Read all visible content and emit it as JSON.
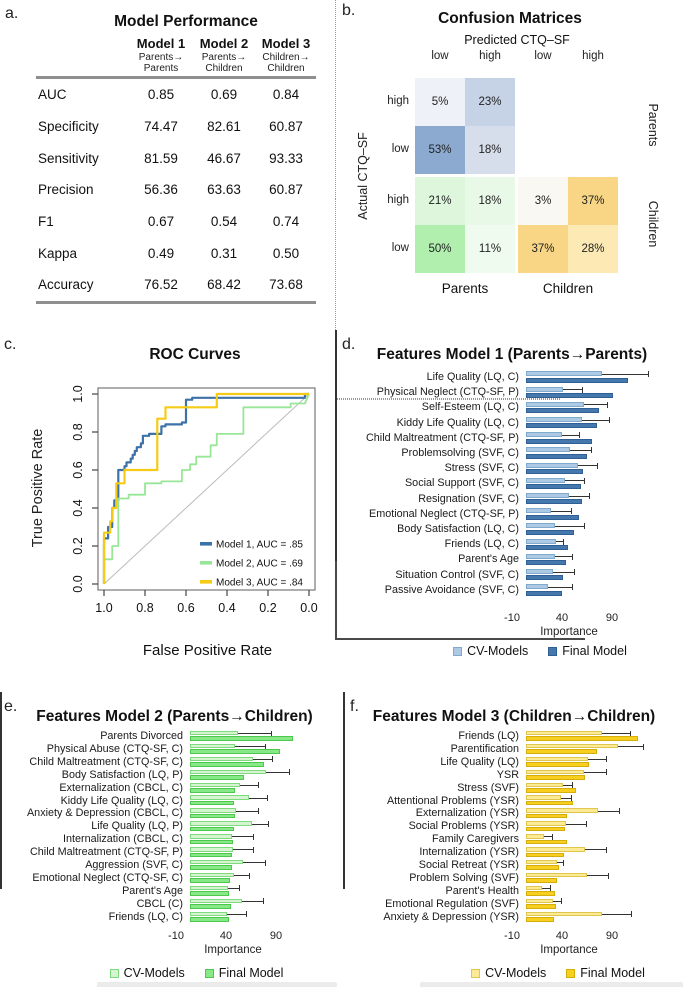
{
  "chart_data": [
    {
      "id": "a",
      "type": "table",
      "letter": "a.",
      "title": "Model Performance",
      "columns": [
        {
          "name": "Model 1",
          "sub": [
            "Parents→",
            "Parents"
          ]
        },
        {
          "name": "Model 2",
          "sub": [
            "Parents→",
            "Children"
          ]
        },
        {
          "name": "Model 3",
          "sub": [
            "Children→",
            "Children"
          ]
        }
      ],
      "rows": [
        {
          "metric": "AUC",
          "values": [
            "0.85",
            "0.69",
            "0.84"
          ]
        },
        {
          "metric": "Specificity",
          "values": [
            "74.47",
            "82.61",
            "60.87"
          ]
        },
        {
          "metric": "Sensitivity",
          "values": [
            "81.59",
            "46.67",
            "93.33"
          ]
        },
        {
          "metric": "Precision",
          "values": [
            "56.36",
            "63.63",
            "60.87"
          ]
        },
        {
          "metric": "F1",
          "values": [
            "0.67",
            "0.54",
            "0.74"
          ]
        },
        {
          "metric": "Kappa",
          "values": [
            "0.49",
            "0.31",
            "0.50"
          ]
        },
        {
          "metric": "Accuracy",
          "values": [
            "76.52",
            "68.42",
            "73.68"
          ]
        }
      ]
    },
    {
      "id": "b",
      "type": "heatmap",
      "letter": "b.",
      "title": "Confusion Matrices",
      "top_axis": "Predicted CTQ–SF",
      "left_axis": "Actual CTQ–SF",
      "col_headers": [
        "low",
        "high",
        "low",
        "high"
      ],
      "row_headers": [
        "high",
        "low",
        "high",
        "low"
      ],
      "right_labels": [
        "Parents",
        "Children"
      ],
      "bottom_labels": [
        "Parents",
        "Children"
      ],
      "cells": [
        [
          "5%",
          "23%",
          "",
          ""
        ],
        [
          "53%",
          "18%",
          "",
          ""
        ],
        [
          "21%",
          "18%",
          "3%",
          "37%"
        ],
        [
          "50%",
          "11%",
          "37%",
          "28%"
        ]
      ],
      "cell_colors": [
        [
          "#eef2f8",
          "#c6d3e6",
          "",
          ""
        ],
        [
          "#8ca9d0",
          "#d6deeb",
          "",
          ""
        ],
        [
          "#def6dc",
          "#e9f9e8",
          "#faf8f3",
          "#f8d685"
        ],
        [
          "#b0efae",
          "#f0fbf0",
          "#f8d685",
          "#fce9b4"
        ]
      ]
    },
    {
      "id": "c",
      "type": "line",
      "letter": "c.",
      "title": "ROC Curves",
      "xlabel": "False Positive Rate",
      "ylabel": "True Positive Rate",
      "x_ticks": [
        "1.0",
        "0.8",
        "0.6",
        "0.4",
        "0.2",
        "0.0"
      ],
      "y_ticks": [
        "0.0",
        "0.2",
        "0.4",
        "0.6",
        "0.8",
        "1.0"
      ],
      "x_axis_reversed": true,
      "diagonal_reference_line": true,
      "legend": [
        {
          "label": "Model 1, AUC = .85",
          "color": "#3c72a7"
        },
        {
          "label": "Model 2, AUC = .69",
          "color": "#98e698"
        },
        {
          "label": "Model 3, AUC = .84",
          "color": "#f6cb15"
        }
      ],
      "curves": [
        {
          "name": "Model 1",
          "auc": 0.85,
          "color": "#3c72a7",
          "width": 2.2,
          "points": [
            [
              1,
              0
            ],
            [
              1,
              0.24
            ],
            [
              0.98,
              0.24
            ],
            [
              0.98,
              0.3
            ],
            [
              0.96,
              0.3
            ],
            [
              0.96,
              0.4
            ],
            [
              0.95,
              0.4
            ],
            [
              0.95,
              0.44
            ],
            [
              0.93,
              0.44
            ],
            [
              0.93,
              0.6
            ],
            [
              0.9,
              0.6
            ],
            [
              0.9,
              0.62
            ],
            [
              0.89,
              0.62
            ],
            [
              0.89,
              0.64
            ],
            [
              0.87,
              0.64
            ],
            [
              0.87,
              0.66
            ],
            [
              0.86,
              0.66
            ],
            [
              0.86,
              0.68
            ],
            [
              0.85,
              0.68
            ],
            [
              0.85,
              0.7
            ],
            [
              0.84,
              0.7
            ],
            [
              0.84,
              0.72
            ],
            [
              0.82,
              0.72
            ],
            [
              0.82,
              0.74
            ],
            [
              0.81,
              0.74
            ],
            [
              0.81,
              0.78
            ],
            [
              0.78,
              0.78
            ],
            [
              0.78,
              0.79
            ],
            [
              0.72,
              0.79
            ],
            [
              0.72,
              0.83
            ],
            [
              0.7,
              0.83
            ],
            [
              0.7,
              0.84
            ],
            [
              0.62,
              0.84
            ],
            [
              0.62,
              0.85
            ],
            [
              0.6,
              0.85
            ],
            [
              0.6,
              0.97
            ],
            [
              0.57,
              0.97
            ],
            [
              0.57,
              0.98
            ],
            [
              0.05,
              0.98
            ],
            [
              0.02,
              0.98
            ],
            [
              0.02,
              1
            ],
            [
              0,
              1
            ]
          ]
        },
        {
          "name": "Model 2",
          "auc": 0.69,
          "color": "#98e698",
          "width": 1.8,
          "points": [
            [
              1,
              0
            ],
            [
              1,
              0.13
            ],
            [
              0.96,
              0.13
            ],
            [
              0.96,
              0.2
            ],
            [
              0.93,
              0.2
            ],
            [
              0.93,
              0.45
            ],
            [
              0.88,
              0.45
            ],
            [
              0.88,
              0.47
            ],
            [
              0.8,
              0.47
            ],
            [
              0.8,
              0.53
            ],
            [
              0.72,
              0.53
            ],
            [
              0.72,
              0.54
            ],
            [
              0.62,
              0.54
            ],
            [
              0.62,
              0.6
            ],
            [
              0.58,
              0.6
            ],
            [
              0.58,
              0.63
            ],
            [
              0.55,
              0.63
            ],
            [
              0.55,
              0.67
            ],
            [
              0.48,
              0.67
            ],
            [
              0.48,
              0.73
            ],
            [
              0.45,
              0.73
            ],
            [
              0.45,
              0.79
            ],
            [
              0.32,
              0.79
            ],
            [
              0.32,
              0.93
            ],
            [
              0.09,
              0.93
            ],
            [
              0.09,
              0.95
            ],
            [
              0.02,
              0.95
            ],
            [
              0,
              1
            ]
          ]
        },
        {
          "name": "Model 3",
          "auc": 0.84,
          "color": "#f6cb15",
          "width": 2.2,
          "points": [
            [
              1,
              0
            ],
            [
              1,
              0.27
            ],
            [
              0.97,
              0.27
            ],
            [
              0.97,
              0.33
            ],
            [
              0.96,
              0.33
            ],
            [
              0.96,
              0.4
            ],
            [
              0.94,
              0.4
            ],
            [
              0.94,
              0.53
            ],
            [
              0.9,
              0.53
            ],
            [
              0.9,
              0.6
            ],
            [
              0.74,
              0.6
            ],
            [
              0.74,
              0.87
            ],
            [
              0.7,
              0.87
            ],
            [
              0.7,
              0.93
            ],
            [
              0.45,
              0.93
            ],
            [
              0.45,
              1
            ],
            [
              0,
              1
            ]
          ]
        }
      ]
    },
    {
      "id": "d",
      "type": "bar",
      "letter": "d.",
      "title": "Features Model 1 (Parents→Parents)",
      "xlabel": "Importance",
      "x_ticks": [
        -10,
        40,
        90
      ],
      "legend": [
        {
          "label": "CV-Models"
        },
        {
          "label": "Final Model"
        }
      ],
      "colors": {
        "cv": "#adc9e3",
        "cv_border": "#7fa9cd",
        "final": "#4579ae",
        "final_border": "#2f5f94"
      },
      "features": [
        {
          "label": "Life Quality (LQ, C)",
          "cv": 76,
          "cv_err": 122,
          "final": 102
        },
        {
          "label": "Physical Neglect (CTQ-SF, P)",
          "cv": 37,
          "cv_err": 56,
          "final": 87
        },
        {
          "label": "Self-Esteem (LQ, C)",
          "cv": 58,
          "cv_err": 81,
          "final": 73
        },
        {
          "label": "Kiddy Life Quality (LQ, C)",
          "cv": 56,
          "cv_err": 83,
          "final": 71
        },
        {
          "label": "Child Maltreatment (CTQ-SF, P)",
          "cv": 36,
          "cv_err": 53,
          "final": 66
        },
        {
          "label": "Problemsolving (SVF, C)",
          "cv": 44,
          "cv_err": 65,
          "final": 61
        },
        {
          "label": "Stress (SVF, C)",
          "cv": 52,
          "cv_err": 71,
          "final": 57
        },
        {
          "label": "Social Support (SVF, C)",
          "cv": 39,
          "cv_err": 58,
          "final": 55
        },
        {
          "label": "Resignation (SVF, C)",
          "cv": 43,
          "cv_err": 63,
          "final": 56
        },
        {
          "label": "Emotional Neglect (CTQ-SF, P)",
          "cv": 25,
          "cv_err": 45,
          "final": 53
        },
        {
          "label": "Body Satisfaction (LQ, C)",
          "cv": 29,
          "cv_err": 58,
          "final": 48
        },
        {
          "label": "Friends (LQ, C)",
          "cv": 30,
          "cv_err": 37,
          "final": 42
        },
        {
          "label": "Parent's Age",
          "cv": 29,
          "cv_err": 46,
          "final": 40
        },
        {
          "label": "Situation Control (SVF, C)",
          "cv": 27,
          "cv_err": 48,
          "final": 37
        },
        {
          "label": "Passive Avoidance (SVF, C)",
          "cv": 22,
          "cv_err": 46,
          "final": 36
        }
      ]
    },
    {
      "id": "e",
      "type": "bar",
      "letter": "e.",
      "title": "Features Model 2 (Parents→Children)",
      "xlabel": "Importance",
      "x_ticks": [
        -10,
        40,
        90
      ],
      "legend": [
        {
          "label": "CV-Models"
        },
        {
          "label": "Final Model"
        }
      ],
      "colors": {
        "cv": "#d4f5d0",
        "cv_border": "#7fd97f",
        "final": "#86e886",
        "final_border": "#4cc94c"
      },
      "features": [
        {
          "label": "Parents Divorced",
          "cv": 48,
          "cv_err": 81,
          "final": 103
        },
        {
          "label": "Physical Abuse (CTQ-SF, C)",
          "cv": 45,
          "cv_err": 75,
          "final": 90
        },
        {
          "label": "Child Maltreatment (CTQ-SF, C)",
          "cv": 63,
          "cv_err": 82,
          "final": 74
        },
        {
          "label": "Body Satisfaction (LQ, P)",
          "cv": 76,
          "cv_err": 99,
          "final": 54
        },
        {
          "label": "Externalization (CBCL, C)",
          "cv": 50,
          "cv_err": 68,
          "final": 45
        },
        {
          "label": "Kiddy Life Quality (LQ, C)",
          "cv": 59,
          "cv_err": 77,
          "final": 44
        },
        {
          "label": "Anxiety & Depression (CBCL, C)",
          "cv": 46,
          "cv_err": 68,
          "final": 45
        },
        {
          "label": "Life Quality (LQ, P)",
          "cv": 62,
          "cv_err": 78,
          "final": 44
        },
        {
          "label": "Internalization (CBCL, C)",
          "cv": 42,
          "cv_err": 63,
          "final": 43
        },
        {
          "label": "Child Maltreatment (CTQ-SF, P)",
          "cv": 43,
          "cv_err": 63,
          "final": 42
        },
        {
          "label": "Aggression (SVF, C)",
          "cv": 53,
          "cv_err": 75,
          "final": 42
        },
        {
          "label": "Emotional Neglect (CTQ-SF, C)",
          "cv": 44,
          "cv_err": 59,
          "final": 40
        },
        {
          "label": "Parent's Age",
          "cv": 38,
          "cv_err": 49,
          "final": 39
        },
        {
          "label": "CBCL (C)",
          "cv": 52,
          "cv_err": 73,
          "final": 41
        },
        {
          "label": "Friends (LQ, C)",
          "cv": 37,
          "cv_err": 56,
          "final": 39
        }
      ]
    },
    {
      "id": "f",
      "type": "bar",
      "letter": "f.",
      "title": "Features Model 3 (Children→Children)",
      "xlabel": "Importance",
      "x_ticks": [
        -10,
        40,
        90
      ],
      "legend": [
        {
          "label": "CV-Models"
        },
        {
          "label": "Final Model"
        }
      ],
      "colors": {
        "cv": "#fceb94",
        "cv_border": "#dfc74f",
        "final": "#f8cf1e",
        "final_border": "#d4ae0b"
      },
      "features": [
        {
          "label": "Friends (LQ)",
          "cv": 76,
          "cv_err": 104,
          "final": 112
        },
        {
          "label": "Parentification",
          "cv": 92,
          "cv_err": 117,
          "final": 71
        },
        {
          "label": "Life Quality (LQ)",
          "cv": 62,
          "cv_err": 80,
          "final": 63
        },
        {
          "label": "YSR",
          "cv": 58,
          "cv_err": 80,
          "final": 59
        },
        {
          "label": "Stress (SVF)",
          "cv": 37,
          "cv_err": 46,
          "final": 50
        },
        {
          "label": "Attentional Problems (YSR)",
          "cv": 35,
          "cv_err": 45,
          "final": 47
        },
        {
          "label": "Externalization (YSR)",
          "cv": 72,
          "cv_err": 93,
          "final": 41
        },
        {
          "label": "Social Problems (YSR)",
          "cv": 40,
          "cv_err": 60,
          "final": 39
        },
        {
          "label": "Family Caregivers",
          "cv": 18,
          "cv_err": 26,
          "final": 41
        },
        {
          "label": "Internalization (YSR)",
          "cv": 59,
          "cv_err": 80,
          "final": 38
        },
        {
          "label": "Social Retreat (YSR)",
          "cv": 31,
          "cv_err": 37,
          "final": 33
        },
        {
          "label": "Problem Solving (SVF)",
          "cv": 61,
          "cv_err": 82,
          "final": 31
        },
        {
          "label": "Parent's Health",
          "cv": 16,
          "cv_err": 24,
          "final": 29
        },
        {
          "label": "Emotional Regulation (SVF)",
          "cv": 27,
          "cv_err": 35,
          "final": 30
        },
        {
          "label": "Anxiety & Depression (YSR)",
          "cv": 76,
          "cv_err": 105,
          "final": 28
        }
      ]
    }
  ]
}
